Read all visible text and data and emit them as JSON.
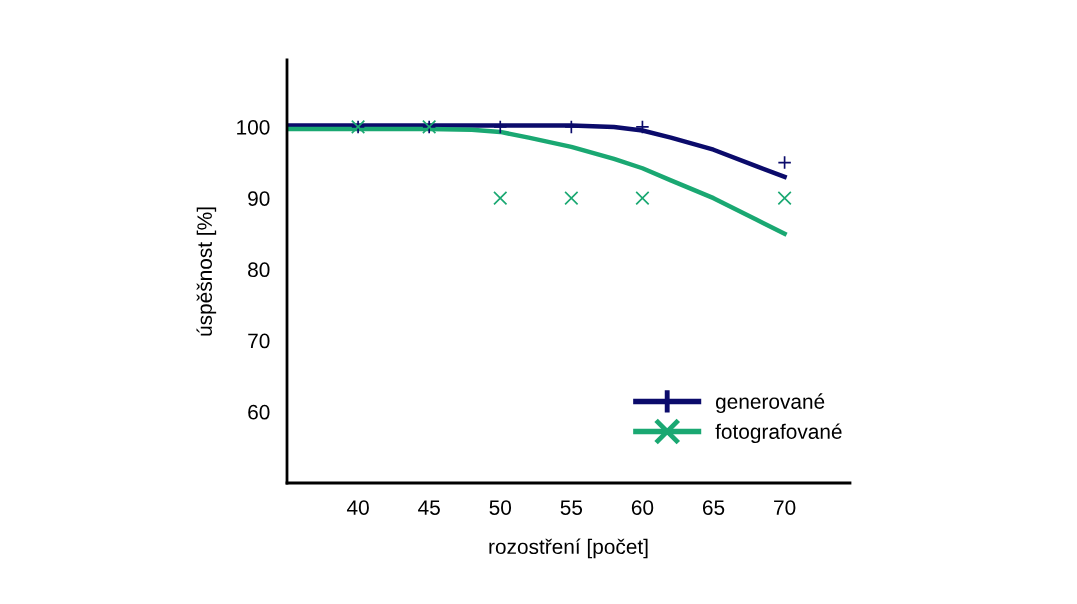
{
  "chart_data": {
    "type": "scatter",
    "xlabel": "rozostření [počet]",
    "ylabel": "úspěšnost [%]",
    "xlim": [
      35,
      74.6
    ],
    "ylim": [
      50,
      109.4
    ],
    "xticks": [
      40,
      45,
      50,
      55,
      60,
      65,
      70
    ],
    "yticks": [
      60,
      70,
      80,
      90,
      100
    ],
    "grid": false,
    "legend": "bottom right",
    "series": [
      {
        "type": "line",
        "color": "#0b0b6b",
        "x": [
          35,
          50,
          55,
          58,
          60,
          62,
          65,
          68,
          70
        ],
        "values": [
          100.2,
          100.2,
          100.2,
          100,
          99.5,
          98.5,
          96.8,
          94.5,
          93
        ],
        "marker": "none"
      },
      {
        "type": "line",
        "color": "#1aa872",
        "x": [
          35,
          45,
          48,
          50,
          52,
          55,
          58,
          60,
          62,
          65,
          68,
          70
        ],
        "values": [
          99.7,
          99.7,
          99.6,
          99.3,
          98.5,
          97.2,
          95.5,
          94.2,
          92.5,
          90,
          87,
          85
        ],
        "marker": "none"
      },
      {
        "name": "generované",
        "color": "#0b0b6b",
        "marker": "plus",
        "x": [
          40,
          45,
          50,
          55,
          60,
          70
        ],
        "values": [
          100,
          100,
          100,
          100,
          100,
          95
        ]
      },
      {
        "name": "fotografované",
        "color": "#1aa872",
        "marker": "cross",
        "x": [
          40,
          45,
          50,
          55,
          60,
          70
        ],
        "values": [
          100,
          100,
          90,
          90,
          90,
          90
        ]
      }
    ]
  }
}
